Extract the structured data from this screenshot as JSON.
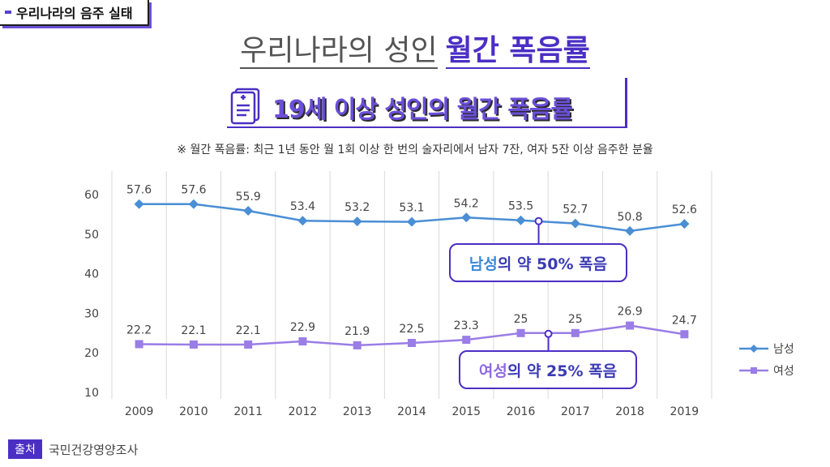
{
  "tag": "우리나라의 음주 실태",
  "title": {
    "light": "우리나라의 성인",
    "bold": "월간 폭음률"
  },
  "subtitle": "19세 이상 성인의 월간 폭음률",
  "note": "※ 월간 폭음률: 최근 1년 동안 월 1회 이상 한 번의 술자리에서 남자 7잔, 여자 5잔 이상 음주한 분율",
  "callouts": {
    "male": {
      "highlight": "남성",
      "rest": "의 약 50% 폭음"
    },
    "female": {
      "highlight": "여성",
      "rest": "의 약 25% 폭음"
    }
  },
  "source": {
    "label": "출처",
    "text": "국민건강영양조사"
  },
  "colors": {
    "male": "#4a8ed4",
    "female": "#9a7de6",
    "accent": "#4b2fc4"
  },
  "chart_data": {
    "type": "line",
    "x": [
      "2009",
      "2010",
      "2011",
      "2012",
      "2013",
      "2014",
      "2015",
      "2016",
      "2017",
      "2018",
      "2019"
    ],
    "series": [
      {
        "name": "남성",
        "marker": "diamond",
        "values": [
          57.6,
          57.6,
          55.9,
          53.4,
          53.2,
          53.1,
          54.2,
          53.5,
          52.7,
          50.8,
          52.6
        ],
        "labels": [
          "57.6",
          "57.6",
          "55.9",
          "53.4",
          "53.2",
          "53.1",
          "54.2",
          "53.5",
          "52.7",
          "50.8",
          "52.6"
        ]
      },
      {
        "name": "여성",
        "marker": "square",
        "values": [
          22.2,
          22.1,
          22.1,
          22.9,
          21.9,
          22.5,
          23.3,
          25,
          25,
          26.9,
          24.7
        ],
        "labels": [
          "22.2",
          "22.1",
          "22.1",
          "22.9",
          "21.9",
          "22.5",
          "23.3",
          "25",
          "25",
          "26.9",
          "24.7"
        ]
      }
    ],
    "ylim": [
      10,
      60
    ],
    "yticks": [
      "10",
      "20",
      "30",
      "40",
      "50",
      "60"
    ],
    "grid": "vertical",
    "legend": "right"
  }
}
